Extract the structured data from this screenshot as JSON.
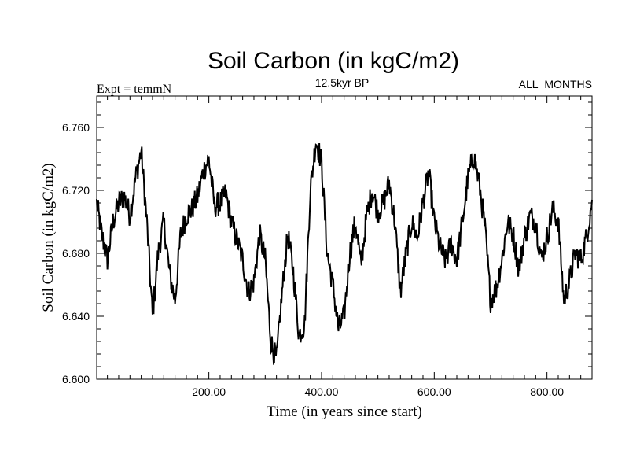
{
  "chart_data": {
    "type": "line",
    "title": "Soil Carbon (in kgC/m2)",
    "subtitle": "12.5kyr BP",
    "left_label": "Expt = temmN",
    "right_label": "ALL_MONTHS",
    "xlabel": "Time (in years since start)",
    "ylabel": "Soil Carbon (in kgC/m2)",
    "xlim": [
      1,
      880
    ],
    "ylim": [
      6.6,
      6.78
    ],
    "x_ticks": [
      200,
      400,
      600,
      800
    ],
    "x_tick_labels": [
      "200.00",
      "400.00",
      "600.00",
      "800.00"
    ],
    "y_ticks": [
      6.6,
      6.64,
      6.68,
      6.72,
      6.76
    ],
    "y_tick_labels": [
      "6.600",
      "6.640",
      "6.680",
      "6.720",
      "6.760"
    ],
    "grid": false,
    "series": [
      {
        "name": "Soil Carbon",
        "color": "#000000",
        "x": [
          1,
          10,
          20,
          30,
          40,
          50,
          60,
          70,
          80,
          90,
          100,
          110,
          120,
          130,
          140,
          150,
          160,
          170,
          180,
          190,
          200,
          210,
          220,
          230,
          240,
          250,
          260,
          270,
          280,
          290,
          300,
          310,
          320,
          330,
          340,
          350,
          360,
          370,
          380,
          390,
          400,
          410,
          420,
          430,
          440,
          450,
          460,
          470,
          480,
          490,
          500,
          510,
          520,
          530,
          540,
          550,
          560,
          570,
          580,
          590,
          600,
          610,
          620,
          630,
          640,
          650,
          660,
          670,
          680,
          690,
          700,
          710,
          720,
          730,
          740,
          750,
          760,
          770,
          780,
          790,
          800,
          810,
          820,
          830,
          840,
          850,
          860,
          870,
          880
        ],
        "values": [
          6.712,
          6.692,
          6.676,
          6.7,
          6.712,
          6.716,
          6.704,
          6.728,
          6.745,
          6.7,
          6.64,
          6.68,
          6.7,
          6.668,
          6.65,
          6.692,
          6.704,
          6.708,
          6.716,
          6.732,
          6.74,
          6.71,
          6.712,
          6.718,
          6.7,
          6.688,
          6.676,
          6.655,
          6.662,
          6.692,
          6.676,
          6.624,
          6.612,
          6.655,
          6.692,
          6.668,
          6.628,
          6.635,
          6.72,
          6.752,
          6.738,
          6.68,
          6.66,
          6.632,
          6.64,
          6.68,
          6.7,
          6.672,
          6.704,
          6.72,
          6.706,
          6.712,
          6.725,
          6.7,
          6.655,
          6.68,
          6.7,
          6.69,
          6.712,
          6.732,
          6.7,
          6.684,
          6.675,
          6.686,
          6.676,
          6.7,
          6.728,
          6.742,
          6.724,
          6.696,
          6.65,
          6.658,
          6.676,
          6.7,
          6.692,
          6.67,
          6.69,
          6.704,
          6.7,
          6.676,
          6.69,
          6.708,
          6.7,
          6.65,
          6.662,
          6.68,
          6.676,
          6.69,
          6.714
        ]
      }
    ]
  }
}
